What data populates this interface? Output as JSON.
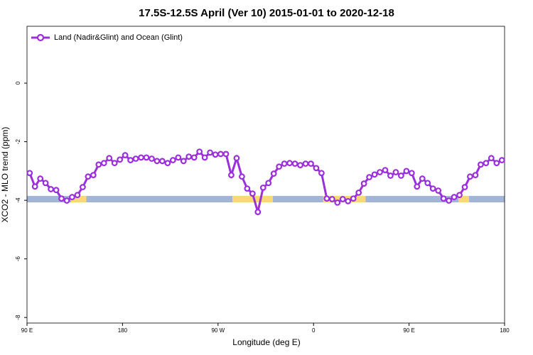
{
  "chart_data": {
    "type": "line",
    "title": "17.5S-12.5S April (Ver 10)   2015-01-01 to 2020-12-18",
    "xlabel": "Longitude (deg E)",
    "ylabel": "XCO2 - MLO trend (ppm)",
    "xlim": [
      90,
      540
    ],
    "ylim": [
      -8.19,
      1.94
    ],
    "xticks": [
      {
        "value": 90,
        "label": "90 E"
      },
      180,
      {
        "value": 270,
        "label": "90 W"
      },
      {
        "value": 360,
        "label": "0"
      },
      {
        "value": 450,
        "label": "90 E"
      },
      {
        "value": 540,
        "label": "180"
      }
    ],
    "yticks": [
      0,
      -2,
      -4,
      -6,
      -8
    ],
    "legend": "top-left",
    "surface_band": {
      "y": [
        -3.85,
        -4.07
      ],
      "ocean_color": "#a3b5d6",
      "land_color": "#f8d878",
      "land_spans": [
        [
          131.5,
          146
        ],
        [
          283.5,
          321.7
        ],
        [
          369,
          409
        ],
        [
          496.5,
          506.5
        ]
      ]
    },
    "x": [
      92.5,
      97.5,
      102.5,
      107.5,
      112.5,
      117.5,
      122.5,
      127.5,
      132.5,
      137.5,
      142.5,
      147.5,
      152.5,
      157.5,
      162.5,
      167.5,
      172.5,
      177.5,
      182.5,
      187.5,
      192.5,
      197.5,
      202.5,
      207.5,
      212.5,
      217.5,
      222.5,
      227.5,
      232.5,
      237.5,
      242.5,
      247.5,
      252.5,
      257.5,
      262.5,
      267.5,
      272.5,
      277.5,
      282.5,
      287.5,
      292.5,
      297.5,
      302.5,
      307.5,
      312.5,
      317.5,
      322.5,
      327.5,
      332.5,
      337.5,
      342.5,
      347.5,
      352.5,
      357.5,
      362.5,
      367.5,
      372.5,
      377.5,
      382.5,
      387.5,
      392.5,
      397.5,
      402.5,
      407.5,
      412.5,
      417.5,
      422.5,
      427.5,
      432.5,
      437.5,
      442.5,
      447.5,
      452.5,
      457.5,
      462.5,
      467.5,
      472.5,
      477.5,
      482.5,
      487.5,
      492.5,
      497.5,
      502.5,
      507.5,
      512.5,
      517.5,
      522.5,
      527.5,
      532.5,
      537.5
    ],
    "series": [
      {
        "name": "Land (Nadir&Glint) and Ocean (Glint)",
        "color": "#9b2fdc",
        "values": [
          -3.07,
          -3.53,
          -3.26,
          -3.41,
          -3.62,
          -3.65,
          -3.94,
          -4.01,
          -3.89,
          -3.82,
          -3.55,
          -3.19,
          -3.14,
          -2.78,
          -2.73,
          -2.56,
          -2.73,
          -2.61,
          -2.46,
          -2.63,
          -2.58,
          -2.54,
          -2.54,
          -2.58,
          -2.66,
          -2.66,
          -2.73,
          -2.63,
          -2.54,
          -2.66,
          -2.51,
          -2.54,
          -2.34,
          -2.54,
          -2.37,
          -2.44,
          -2.42,
          -2.42,
          -3.14,
          -2.56,
          -3.19,
          -3.6,
          -3.77,
          -4.4,
          -3.57,
          -3.41,
          -3.09,
          -2.85,
          -2.75,
          -2.73,
          -2.75,
          -2.8,
          -2.75,
          -2.75,
          -2.9,
          -3.07,
          -3.94,
          -3.96,
          -4.08,
          -3.96,
          -4.03,
          -3.94,
          -3.74,
          -3.43,
          -3.21,
          -3.12,
          -3.04,
          -2.97,
          -3.16,
          -3.04,
          -3.16,
          -3.0,
          -3.07,
          -3.53,
          -3.26,
          -3.41,
          -3.6,
          -3.67,
          -3.94,
          -4.01,
          -3.89,
          -3.82,
          -3.55,
          -3.19,
          -3.14,
          -2.78,
          -2.73,
          -2.56,
          -2.73,
          -2.63
        ]
      }
    ]
  }
}
